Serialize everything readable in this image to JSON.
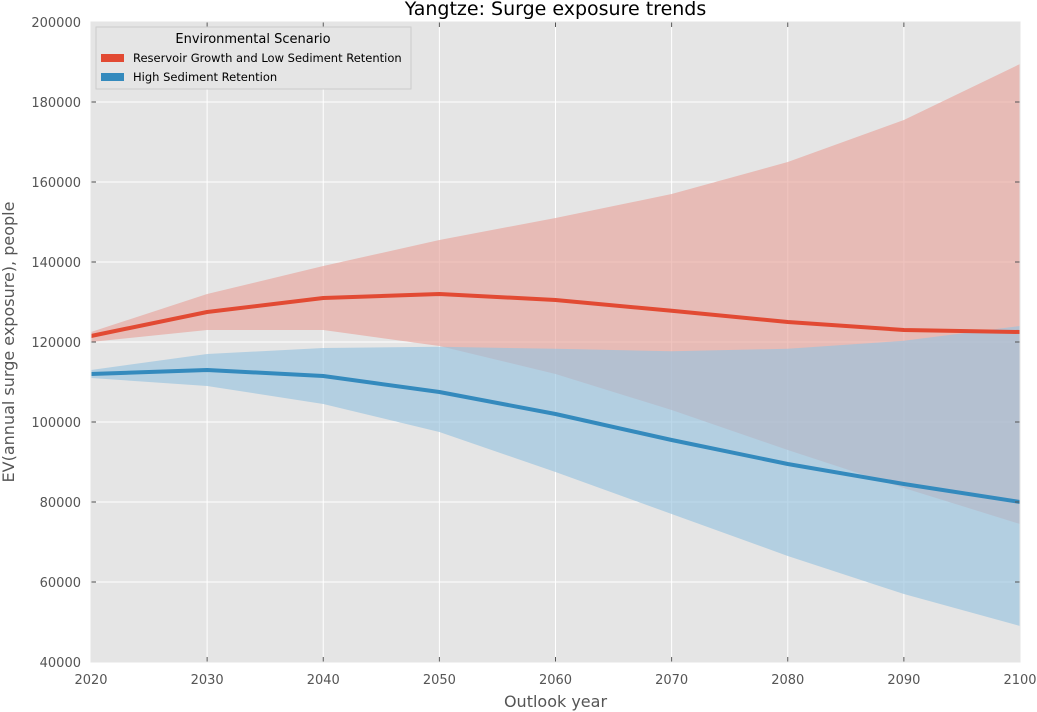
{
  "chart_data": {
    "type": "line",
    "title": "Yangtze: Surge exposure trends",
    "xlabel": "Outlook year",
    "ylabel": "EV(annual surge exposure), people",
    "xlim": [
      2020,
      2100
    ],
    "ylim": [
      40000,
      200000
    ],
    "x_ticks": [
      2020,
      2030,
      2040,
      2050,
      2060,
      2070,
      2080,
      2090,
      2100
    ],
    "y_ticks": [
      40000,
      60000,
      80000,
      100000,
      120000,
      140000,
      160000,
      180000,
      200000
    ],
    "x": [
      2020,
      2030,
      2040,
      2050,
      2060,
      2070,
      2080,
      2090,
      2100
    ],
    "grid": true,
    "legend": {
      "title": "Environmental Scenario",
      "placement": "top-left"
    },
    "series": [
      {
        "name": "Reservoir Growth and Low Sediment Retention",
        "color": "#e24a33",
        "band_color": "#e8a59c",
        "values": [
          121500,
          127500,
          131000,
          132000,
          130500,
          127800,
          125000,
          123000,
          122500
        ],
        "upper": [
          122500,
          132000,
          139000,
          145500,
          151000,
          157000,
          165000,
          175500,
          189500
        ],
        "lower": [
          120000,
          123000,
          123000,
          119000,
          112000,
          103000,
          93000,
          83500,
          74500
        ]
      },
      {
        "name": "High Sediment Retention",
        "color": "#348abd",
        "band_color": "#98c3de",
        "values": [
          112000,
          113000,
          111500,
          107500,
          102000,
          95500,
          89500,
          84500,
          80000
        ],
        "upper": [
          113000,
          117000,
          118500,
          118800,
          118300,
          117700,
          118300,
          120300,
          124000
        ],
        "lower": [
          111000,
          109000,
          104500,
          97500,
          87500,
          77000,
          66500,
          57000,
          49000
        ]
      }
    ]
  }
}
